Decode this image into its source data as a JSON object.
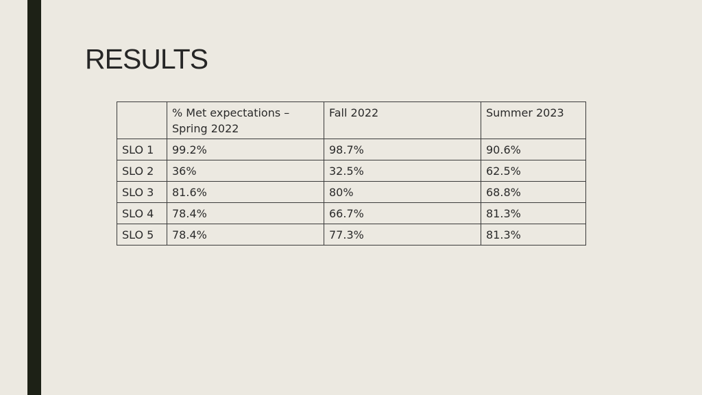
{
  "slide": {
    "title": "RESULTS"
  },
  "table": {
    "headers": [
      "",
      "% Met expectations – Spring 2022",
      "Fall 2022",
      "Summer 2023"
    ],
    "rows": [
      [
        "SLO 1",
        "99.2%",
        "98.7%",
        "90.6%"
      ],
      [
        "SLO 2",
        "36%",
        "32.5%",
        "62.5%"
      ],
      [
        "SLO 3",
        "81.6%",
        "80%",
        "68.8%"
      ],
      [
        "SLO 4",
        "78.4%",
        "66.7%",
        "81.3%"
      ],
      [
        "SLO 5",
        "78.4%",
        "77.3%",
        "81.3%"
      ]
    ]
  },
  "colors": {
    "background": "#ece9e1",
    "accent_bar": "#1d2116"
  }
}
